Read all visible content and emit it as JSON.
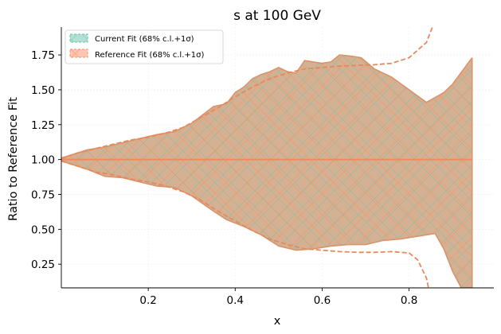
{
  "chart_data": {
    "type": "area",
    "title": "s at 100 GeV",
    "xlabel": "x",
    "ylabel": "Ratio to Reference Fit",
    "xlim": [
      0.0,
      0.995
    ],
    "ylim": [
      0.08,
      1.95
    ],
    "xticks": [
      {
        "value": 0.2,
        "label": "0.2"
      },
      {
        "value": 0.4,
        "label": "0.4"
      },
      {
        "value": 0.6,
        "label": "0.6"
      },
      {
        "value": 0.8,
        "label": "0.8"
      }
    ],
    "yticks": [
      {
        "value": 0.25,
        "label": "0.25"
      },
      {
        "value": 0.5,
        "label": "0.50"
      },
      {
        "value": 0.75,
        "label": "0.75"
      },
      {
        "value": 1.0,
        "label": "1.00"
      },
      {
        "value": 1.25,
        "label": "1.25"
      },
      {
        "value": 1.5,
        "label": "1.50"
      },
      {
        "value": 1.75,
        "label": "1.75"
      }
    ],
    "grid": true,
    "legend_position": "top-left",
    "series": [
      {
        "name": "Current Fit (68% c.l.+1σ)",
        "color": "#66c2a5",
        "central": [
          [
            0.0,
            1.0
          ],
          [
            0.945,
            1.0
          ]
        ],
        "upper": [
          [
            0.0,
            1.01
          ],
          [
            0.03,
            1.04
          ],
          [
            0.06,
            1.07
          ],
          [
            0.1,
            1.09
          ],
          [
            0.14,
            1.12
          ],
          [
            0.18,
            1.15
          ],
          [
            0.22,
            1.18
          ],
          [
            0.26,
            1.2
          ],
          [
            0.3,
            1.26
          ],
          [
            0.35,
            1.38
          ],
          [
            0.38,
            1.4
          ],
          [
            0.4,
            1.48
          ],
          [
            0.42,
            1.52
          ],
          [
            0.44,
            1.58
          ],
          [
            0.46,
            1.61
          ],
          [
            0.48,
            1.63
          ],
          [
            0.5,
            1.66
          ],
          [
            0.52,
            1.63
          ],
          [
            0.54,
            1.62
          ],
          [
            0.56,
            1.71
          ],
          [
            0.58,
            1.7
          ],
          [
            0.6,
            1.69
          ],
          [
            0.62,
            1.7
          ],
          [
            0.64,
            1.75
          ],
          [
            0.67,
            1.74
          ],
          [
            0.69,
            1.73
          ],
          [
            0.72,
            1.65
          ],
          [
            0.76,
            1.59
          ],
          [
            0.8,
            1.5
          ],
          [
            0.84,
            1.41
          ],
          [
            0.88,
            1.48
          ],
          [
            0.9,
            1.54
          ],
          [
            0.945,
            1.73
          ]
        ],
        "lower": [
          [
            0.0,
            0.99
          ],
          [
            0.03,
            0.96
          ],
          [
            0.06,
            0.93
          ],
          [
            0.1,
            0.88
          ],
          [
            0.14,
            0.87
          ],
          [
            0.18,
            0.84
          ],
          [
            0.22,
            0.81
          ],
          [
            0.26,
            0.8
          ],
          [
            0.3,
            0.74
          ],
          [
            0.35,
            0.63
          ],
          [
            0.38,
            0.57
          ],
          [
            0.42,
            0.52
          ],
          [
            0.46,
            0.46
          ],
          [
            0.5,
            0.38
          ],
          [
            0.54,
            0.35
          ],
          [
            0.58,
            0.36
          ],
          [
            0.62,
            0.38
          ],
          [
            0.66,
            0.39
          ],
          [
            0.7,
            0.39
          ],
          [
            0.74,
            0.42
          ],
          [
            0.78,
            0.43
          ],
          [
            0.82,
            0.45
          ],
          [
            0.86,
            0.47
          ],
          [
            0.88,
            0.36
          ],
          [
            0.9,
            0.2
          ],
          [
            0.92,
            0.08
          ],
          [
            0.945,
            0.08
          ]
        ]
      },
      {
        "name": "Reference Fit (68% c.l.+1σ)",
        "color": "#fc8d62",
        "central": [
          [
            0.0,
            1.0
          ],
          [
            0.945,
            1.0
          ]
        ],
        "upper": [
          [
            0.0,
            1.01
          ],
          [
            0.04,
            1.05
          ],
          [
            0.08,
            1.08
          ],
          [
            0.12,
            1.11
          ],
          [
            0.16,
            1.14
          ],
          [
            0.2,
            1.16
          ],
          [
            0.24,
            1.19
          ],
          [
            0.28,
            1.23
          ],
          [
            0.32,
            1.3
          ],
          [
            0.36,
            1.37
          ],
          [
            0.4,
            1.45
          ],
          [
            0.44,
            1.52
          ],
          [
            0.48,
            1.58
          ],
          [
            0.52,
            1.62
          ],
          [
            0.56,
            1.65
          ],
          [
            0.6,
            1.66
          ],
          [
            0.64,
            1.67
          ],
          [
            0.68,
            1.675
          ],
          [
            0.72,
            1.68
          ],
          [
            0.76,
            1.69
          ],
          [
            0.8,
            1.73
          ],
          [
            0.84,
            1.84
          ],
          [
            0.86,
            2.0
          ],
          [
            0.87,
            2.2
          ]
        ],
        "lower": [
          [
            0.0,
            0.99
          ],
          [
            0.04,
            0.95
          ],
          [
            0.08,
            0.91
          ],
          [
            0.12,
            0.89
          ],
          [
            0.16,
            0.86
          ],
          [
            0.2,
            0.84
          ],
          [
            0.24,
            0.81
          ],
          [
            0.28,
            0.77
          ],
          [
            0.32,
            0.71
          ],
          [
            0.36,
            0.63
          ],
          [
            0.4,
            0.56
          ],
          [
            0.44,
            0.49
          ],
          [
            0.48,
            0.43
          ],
          [
            0.52,
            0.39
          ],
          [
            0.56,
            0.36
          ],
          [
            0.6,
            0.35
          ],
          [
            0.64,
            0.34
          ],
          [
            0.68,
            0.335
          ],
          [
            0.72,
            0.335
          ],
          [
            0.76,
            0.34
          ],
          [
            0.8,
            0.33
          ],
          [
            0.82,
            0.28
          ],
          [
            0.84,
            0.15
          ],
          [
            0.85,
            0.0
          ]
        ]
      }
    ]
  }
}
